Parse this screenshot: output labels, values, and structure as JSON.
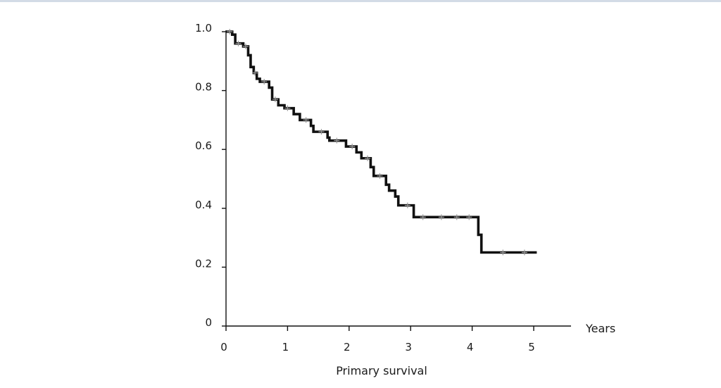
{
  "chart_data": {
    "type": "line",
    "title": "",
    "xlabel": "Years",
    "ylabel": "",
    "caption": "Primary survival",
    "xlim": [
      0,
      5.6
    ],
    "ylim": [
      0,
      1.0
    ],
    "x_ticks": [
      0,
      1,
      2,
      3,
      4,
      5
    ],
    "x_tick_labels": [
      "0",
      "1",
      "2",
      "3",
      "4",
      "5"
    ],
    "y_ticks": [
      0,
      0.2,
      0.4,
      0.6,
      0.8,
      1.0
    ],
    "y_tick_labels": [
      "0",
      "0.2",
      "0.4",
      "0.6",
      "0.8",
      "1.0"
    ],
    "grid": false,
    "legend": "none",
    "colors": {
      "line": "#111111",
      "censor": "#9a9a9a",
      "axis": "#111111"
    },
    "series": [
      {
        "steps": [
          [
            0,
            1.0
          ],
          [
            0.1,
            0.99
          ],
          [
            0.15,
            0.96
          ],
          [
            0.28,
            0.95
          ],
          [
            0.36,
            0.92
          ],
          [
            0.4,
            0.88
          ],
          [
            0.45,
            0.86
          ],
          [
            0.5,
            0.84
          ],
          [
            0.55,
            0.83
          ],
          [
            0.7,
            0.81
          ],
          [
            0.75,
            0.77
          ],
          [
            0.85,
            0.75
          ],
          [
            0.95,
            0.74
          ],
          [
            1.1,
            0.72
          ],
          [
            1.2,
            0.7
          ],
          [
            1.38,
            0.68
          ],
          [
            1.42,
            0.66
          ],
          [
            1.65,
            0.64
          ],
          [
            1.68,
            0.63
          ],
          [
            1.95,
            0.61
          ],
          [
            2.12,
            0.59
          ],
          [
            2.2,
            0.57
          ],
          [
            2.35,
            0.54
          ],
          [
            2.4,
            0.51
          ],
          [
            2.6,
            0.48
          ],
          [
            2.65,
            0.46
          ],
          [
            2.75,
            0.44
          ],
          [
            2.8,
            0.41
          ],
          [
            3.05,
            0.37
          ],
          [
            4.1,
            0.31
          ],
          [
            4.15,
            0.25
          ]
        ],
        "end_x": 5.05,
        "censored": [
          [
            0.06,
            1.0
          ],
          [
            0.2,
            0.96
          ],
          [
            0.32,
            0.95
          ],
          [
            0.47,
            0.86
          ],
          [
            0.62,
            0.83
          ],
          [
            0.8,
            0.77
          ],
          [
            1.0,
            0.74
          ],
          [
            1.3,
            0.7
          ],
          [
            1.55,
            0.66
          ],
          [
            1.8,
            0.63
          ],
          [
            2.05,
            0.61
          ],
          [
            2.3,
            0.57
          ],
          [
            2.5,
            0.51
          ],
          [
            2.95,
            0.41
          ],
          [
            3.2,
            0.37
          ],
          [
            3.5,
            0.37
          ],
          [
            3.75,
            0.37
          ],
          [
            3.95,
            0.37
          ],
          [
            4.5,
            0.25
          ],
          [
            4.85,
            0.25
          ]
        ]
      }
    ]
  }
}
